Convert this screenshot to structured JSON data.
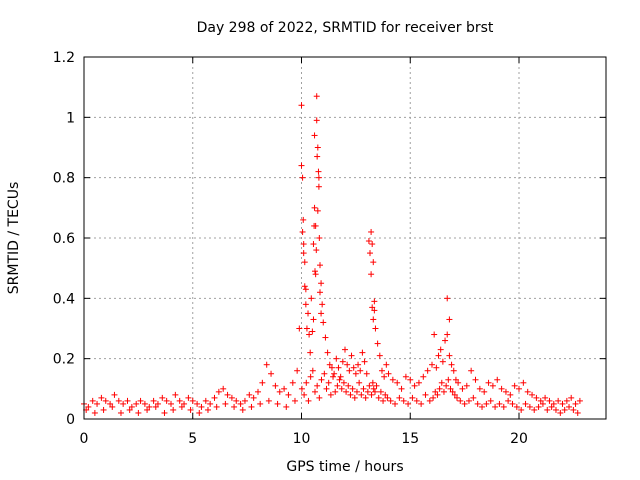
{
  "chart_data": {
    "type": "scatter",
    "title": "Day 298 of 2022, SRMTID for receiver brst",
    "xlabel": "GPS time / hours",
    "ylabel": "SRMTID / TECUs",
    "xlim": [
      0,
      24
    ],
    "ylim": [
      0,
      1.2
    ],
    "xticks": [
      "0",
      "5",
      "10",
      "15",
      "20"
    ],
    "xtick_values": [
      0,
      5,
      10,
      15,
      20
    ],
    "yticks": [
      "0",
      "0.2",
      "0.4",
      "0.6",
      "0.8",
      "1",
      "1.2"
    ],
    "ytick_values": [
      0,
      0.2,
      0.4,
      0.6,
      0.8,
      1.0,
      1.2
    ],
    "grid": true,
    "marker": "plus",
    "marker_color": "#ff0000",
    "series": [
      {
        "name": "brst",
        "x": [
          0.0,
          0.2,
          0.4,
          0.6,
          0.8,
          1.0,
          1.2,
          1.4,
          1.6,
          1.8,
          2.0,
          2.2,
          2.4,
          2.6,
          2.8,
          3.0,
          3.2,
          3.4,
          3.6,
          3.8,
          4.0,
          4.2,
          4.4,
          4.6,
          4.8,
          5.0,
          5.2,
          5.4,
          5.6,
          5.8,
          6.0,
          6.2,
          6.4,
          6.6,
          6.8,
          7.0,
          7.2,
          7.4,
          7.6,
          7.8,
          8.0,
          8.2,
          8.4,
          8.6,
          8.8,
          9.0,
          9.2,
          9.4,
          9.6,
          9.8,
          9.9,
          10.0,
          10.05,
          10.1,
          10.15,
          10.2,
          10.25,
          10.3,
          10.35,
          10.4,
          10.45,
          10.5,
          10.55,
          10.6,
          10.65,
          10.7,
          10.75,
          10.8,
          10.85,
          10.9,
          10.95,
          11.0,
          11.1,
          11.2,
          11.3,
          11.4,
          11.5,
          11.6,
          11.7,
          11.8,
          11.9,
          12.0,
          12.1,
          12.2,
          12.3,
          12.4,
          12.5,
          12.6,
          12.7,
          12.8,
          12.9,
          13.0,
          13.1,
          13.15,
          13.2,
          13.25,
          13.3,
          13.35,
          13.4,
          13.5,
          13.6,
          13.7,
          13.8,
          13.9,
          14.0,
          14.2,
          14.4,
          14.6,
          14.8,
          15.0,
          15.2,
          15.4,
          15.6,
          15.8,
          16.0,
          16.1,
          16.2,
          16.3,
          16.4,
          16.5,
          16.6,
          16.7,
          16.8,
          16.9,
          17.0,
          17.1,
          17.2,
          17.4,
          17.6,
          17.8,
          18.0,
          18.2,
          18.4,
          18.6,
          18.8,
          19.0,
          19.2,
          19.4,
          19.6,
          19.8,
          20.0,
          20.2,
          20.4,
          20.6,
          20.8,
          21.0,
          21.2,
          21.4,
          21.6,
          21.8,
          22.0,
          22.2,
          22.4,
          22.6,
          22.8,
          0.1,
          0.5,
          0.9,
          1.3,
          1.7,
          2.1,
          2.5,
          2.9,
          3.3,
          3.7,
          4.1,
          4.5,
          4.9,
          5.3,
          5.7,
          6.1,
          6.5,
          6.9,
          7.3,
          7.7,
          8.1,
          8.5,
          8.9,
          9.3,
          9.7,
          10.02,
          10.12,
          10.22,
          10.32,
          10.42,
          10.52,
          10.62,
          10.72,
          10.82,
          10.92,
          11.05,
          11.15,
          11.25,
          11.35,
          11.45,
          11.55,
          11.65,
          11.75,
          11.85,
          11.95,
          12.05,
          12.15,
          12.25,
          12.35,
          12.45,
          12.55,
          12.65,
          12.75,
          12.85,
          12.95,
          13.05,
          13.12,
          13.22,
          13.28,
          13.32,
          13.38,
          13.45,
          13.55,
          13.65,
          13.75,
          13.85,
          13.95,
          14.1,
          14.3,
          14.5,
          14.7,
          14.9,
          15.1,
          15.3,
          15.5,
          15.7,
          15.9,
          16.05,
          16.15,
          16.25,
          16.35,
          16.45,
          16.55,
          16.65,
          16.75,
          16.85,
          16.95,
          17.05,
          17.15,
          17.3,
          17.5,
          17.7,
          17.9,
          18.1,
          18.3,
          18.5,
          18.7,
          18.9,
          19.1,
          19.3,
          19.5,
          19.7,
          19.9,
          20.1,
          20.3,
          20.5,
          20.7,
          20.9,
          21.1,
          21.3,
          21.5,
          21.7,
          21.9,
          22.1,
          22.3,
          22.5,
          22.7,
          10.6,
          10.65,
          10.7,
          10.72,
          10.75,
          10.78,
          10.8,
          10.82,
          10.05,
          10.08,
          10.1,
          10.0,
          10.15,
          10.2,
          10.55,
          10.58,
          10.62,
          10.68,
          10.85,
          10.9,
          13.2,
          13.25,
          13.3,
          13.35,
          16.7,
          16.8
        ],
        "y": [
          0.05,
          0.04,
          0.06,
          0.05,
          0.07,
          0.06,
          0.05,
          0.08,
          0.06,
          0.05,
          0.06,
          0.04,
          0.05,
          0.06,
          0.05,
          0.04,
          0.06,
          0.05,
          0.07,
          0.06,
          0.05,
          0.08,
          0.06,
          0.05,
          0.07,
          0.06,
          0.05,
          0.04,
          0.06,
          0.05,
          0.07,
          0.09,
          0.1,
          0.08,
          0.07,
          0.06,
          0.05,
          0.06,
          0.08,
          0.07,
          0.09,
          0.12,
          0.18,
          0.15,
          0.11,
          0.09,
          0.1,
          0.08,
          0.12,
          0.16,
          0.3,
          0.84,
          0.62,
          0.55,
          0.44,
          0.38,
          0.3,
          0.35,
          0.28,
          0.22,
          0.4,
          0.29,
          0.33,
          0.7,
          0.48,
          1.07,
          0.69,
          0.8,
          0.51,
          0.45,
          0.38,
          0.32,
          0.27,
          0.22,
          0.18,
          0.17,
          0.15,
          0.2,
          0.17,
          0.14,
          0.19,
          0.23,
          0.18,
          0.16,
          0.21,
          0.17,
          0.15,
          0.18,
          0.16,
          0.22,
          0.19,
          0.15,
          0.59,
          0.55,
          0.48,
          0.37,
          0.33,
          0.36,
          0.3,
          0.25,
          0.21,
          0.16,
          0.14,
          0.18,
          0.15,
          0.13,
          0.12,
          0.1,
          0.14,
          0.13,
          0.11,
          0.12,
          0.14,
          0.16,
          0.18,
          0.28,
          0.17,
          0.21,
          0.23,
          0.19,
          0.26,
          0.28,
          0.21,
          0.18,
          0.16,
          0.13,
          0.12,
          0.1,
          0.11,
          0.16,
          0.13,
          0.1,
          0.09,
          0.12,
          0.11,
          0.13,
          0.1,
          0.09,
          0.08,
          0.11,
          0.1,
          0.12,
          0.09,
          0.08,
          0.07,
          0.06,
          0.07,
          0.06,
          0.05,
          0.06,
          0.05,
          0.06,
          0.07,
          0.05,
          0.06,
          0.03,
          0.02,
          0.03,
          0.04,
          0.02,
          0.03,
          0.02,
          0.03,
          0.04,
          0.02,
          0.03,
          0.04,
          0.03,
          0.02,
          0.03,
          0.04,
          0.05,
          0.04,
          0.03,
          0.04,
          0.05,
          0.06,
          0.05,
          0.04,
          0.06,
          0.1,
          0.08,
          0.12,
          0.06,
          0.14,
          0.16,
          0.09,
          0.11,
          0.07,
          0.13,
          0.15,
          0.1,
          0.12,
          0.08,
          0.14,
          0.09,
          0.11,
          0.13,
          0.1,
          0.12,
          0.09,
          0.11,
          0.08,
          0.1,
          0.07,
          0.09,
          0.12,
          0.08,
          0.1,
          0.07,
          0.09,
          0.11,
          0.08,
          0.12,
          0.1,
          0.09,
          0.11,
          0.07,
          0.09,
          0.06,
          0.08,
          0.07,
          0.06,
          0.05,
          0.07,
          0.06,
          0.05,
          0.07,
          0.06,
          0.05,
          0.08,
          0.06,
          0.07,
          0.09,
          0.08,
          0.1,
          0.12,
          0.09,
          0.11,
          0.13,
          0.1,
          0.09,
          0.08,
          0.07,
          0.06,
          0.05,
          0.06,
          0.07,
          0.05,
          0.04,
          0.05,
          0.06,
          0.04,
          0.05,
          0.04,
          0.06,
          0.05,
          0.04,
          0.03,
          0.05,
          0.04,
          0.03,
          0.04,
          0.05,
          0.03,
          0.04,
          0.03,
          0.02,
          0.03,
          0.04,
          0.03,
          0.02,
          0.94,
          0.64,
          0.99,
          0.87,
          0.9,
          0.82,
          0.77,
          0.6,
          0.8,
          0.66,
          0.58,
          1.04,
          0.52,
          0.43,
          0.58,
          0.64,
          0.49,
          0.56,
          0.42,
          0.35,
          0.62,
          0.58,
          0.52,
          0.39,
          0.4,
          0.33
        ]
      }
    ]
  }
}
